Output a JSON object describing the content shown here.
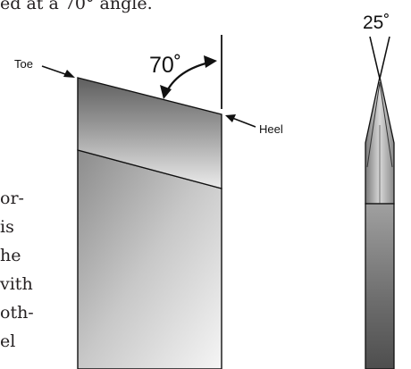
{
  "text": {
    "top_fragment": "ed at a 70° angle.",
    "side_fragments": [
      "or-",
      "is",
      "he",
      "vith",
      "oth-",
      "el"
    ]
  },
  "diagram": {
    "labels": {
      "toe": "Toe",
      "heel": "Heel",
      "bevel_angle": "70˚",
      "sharpening_angle": "25˚"
    }
  },
  "colors": {
    "ink": "#231f20",
    "outline": "#111111",
    "bevel_dark": "#6a6a6a",
    "bevel_light": "#e8e8e8",
    "blade_dark": "#8f8f8f",
    "blade_light": "#f3f3f3"
  }
}
